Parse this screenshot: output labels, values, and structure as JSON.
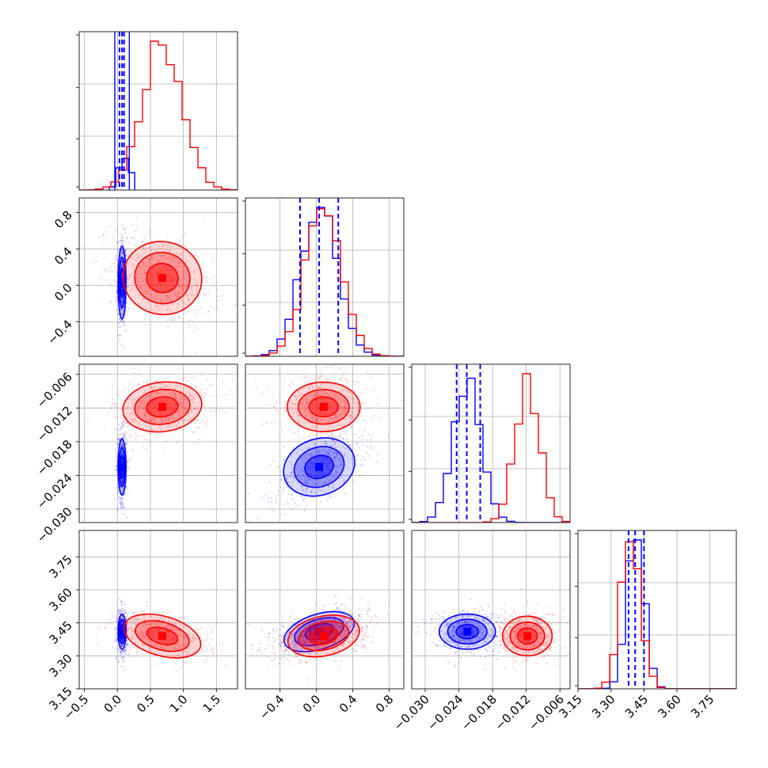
{
  "chart_data": {
    "type": "corner",
    "grid": true,
    "colors": {
      "model_a": "#0000ff",
      "model_b": "#ff0000"
    },
    "params": [
      {
        "ticks": [
          -0.5,
          0.0,
          0.5,
          1.0,
          1.5
        ],
        "tick_labels": [
          "−0.5",
          "0.0",
          "0.5",
          "1.0",
          "1.5"
        ],
        "range": [
          -0.58,
          1.82
        ],
        "blue": {
          "center": 0.07,
          "sigma": 0.03,
          "quantiles": [
            0.03,
            0.07,
            0.1
          ]
        },
        "red": {
          "center": 0.68,
          "sigma": 0.3
        }
      },
      {
        "ticks": [
          -0.4,
          0.0,
          0.4,
          0.8
        ],
        "tick_labels": [
          "−0.4",
          "0.0",
          "0.4",
          "0.8"
        ],
        "range": [
          -0.78,
          0.96
        ],
        "blue": {
          "center": 0.03,
          "sigma": 0.2,
          "quantiles": [
            -0.18,
            0.03,
            0.24
          ]
        },
        "red": {
          "center": 0.08,
          "sigma": 0.2
        }
      },
      {
        "ticks": [
          -0.03,
          -0.024,
          -0.018,
          -0.012,
          -0.006
        ],
        "tick_labels": [
          "−0.030",
          "−0.024",
          "−0.018",
          "−0.012",
          "−0.006"
        ],
        "range": [
          -0.0324,
          -0.0042
        ],
        "blue": {
          "center": -0.0225,
          "sigma": 0.0025,
          "quantiles": [
            -0.0244,
            -0.0226,
            -0.0202
          ]
        },
        "red": {
          "center": -0.0118,
          "sigma": 0.0022
        }
      },
      {
        "ticks": [
          3.15,
          3.3,
          3.45,
          3.6,
          3.75
        ],
        "tick_labels": [
          "3.15",
          "3.30",
          "3.45",
          "3.60",
          "3.75"
        ],
        "range": [
          3.15,
          3.87
        ],
        "blue": {
          "center": 3.41,
          "sigma": 0.04,
          "quantiles": [
            3.38,
            3.41,
            3.45
          ]
        },
        "red": {
          "center": 3.39,
          "sigma": 0.045
        }
      }
    ]
  }
}
